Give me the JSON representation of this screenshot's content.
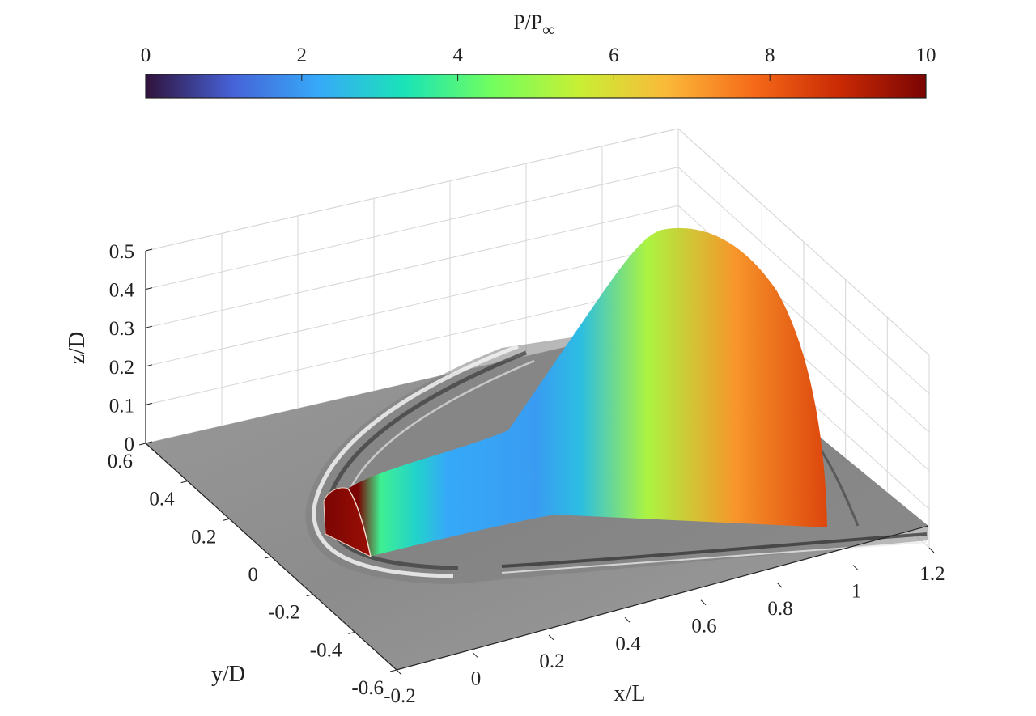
{
  "chart_data": {
    "type": "surface3d",
    "colorbar": {
      "title_main": "P/P",
      "title_sub": "∞",
      "range": [
        0,
        10
      ],
      "ticks": [
        "0",
        "2",
        "4",
        "6",
        "8",
        "10"
      ],
      "colormap": "turbo",
      "stops": [
        "#30123b",
        "#4662d7",
        "#36aaf9",
        "#1ae4b6",
        "#72fe5e",
        "#c8ef34",
        "#faba39",
        "#f66b19",
        "#ca2a04",
        "#7a0403"
      ]
    },
    "axes": {
      "x": {
        "label": "x/L",
        "range": [
          -0.2,
          1.2
        ],
        "ticks": [
          "-0.2",
          "0",
          "0.2",
          "0.4",
          "0.6",
          "0.8",
          "1",
          "1.2"
        ]
      },
      "y": {
        "label": "y/D",
        "range": [
          -0.6,
          0.6
        ],
        "ticks": [
          "-0.6",
          "-0.4",
          "-0.2",
          "0",
          "0.2",
          "0.4",
          "0.6"
        ]
      },
      "z": {
        "label": "z/D",
        "range": [
          0,
          0.5
        ],
        "ticks": [
          "0",
          "0.1",
          "0.2",
          "0.3",
          "0.4",
          "0.5"
        ]
      },
      "grid": true
    },
    "surface": {
      "body": "half-cylinder forebody with flared conical afterbody",
      "floor": "grayscale schlieren shading of the bow shock on the ground plane",
      "pressure_along_body": [
        {
          "x": -0.05,
          "p": 10
        },
        {
          "x": 0.0,
          "p": 3.8
        },
        {
          "x": 0.08,
          "p": 3.0
        },
        {
          "x": 0.15,
          "p": 2.2
        },
        {
          "x": 0.35,
          "p": 2.0
        },
        {
          "x": 0.45,
          "p": 2.6
        },
        {
          "x": 0.6,
          "p": 5.2
        },
        {
          "x": 0.8,
          "p": 7.2
        },
        {
          "x": 1.0,
          "p": 8.4
        }
      ]
    }
  }
}
